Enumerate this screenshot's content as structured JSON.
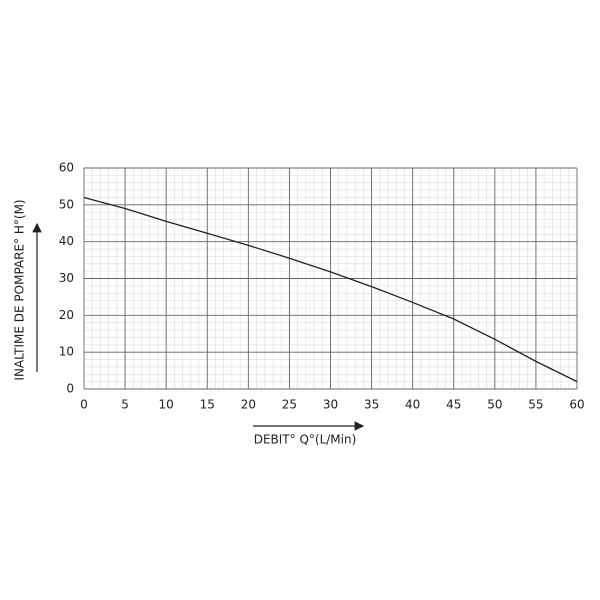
{
  "chart_data": {
    "type": "line",
    "x_label": "DEBIT° Q°(L/Min)",
    "y_label": "INALTIME DE POMPARE° H°(M)",
    "x": [
      0,
      5,
      10,
      15,
      20,
      25,
      30,
      35,
      40,
      45,
      50,
      55,
      60
    ],
    "series": [
      {
        "color": "#222222",
        "values": [
          52,
          49,
          45.5,
          42.3,
          39,
          35.5,
          31.8,
          27.8,
          23.5,
          19,
          13.5,
          7.5,
          2
        ]
      }
    ],
    "xlim": [
      0,
      60
    ],
    "xticks": [
      0,
      5,
      10,
      15,
      20,
      25,
      30,
      35,
      40,
      45,
      50,
      55,
      60
    ],
    "ylim": [
      0,
      60
    ],
    "yticks": [
      0,
      10,
      20,
      30,
      40,
      50,
      60
    ],
    "grid": true,
    "minor_grid": true
  }
}
